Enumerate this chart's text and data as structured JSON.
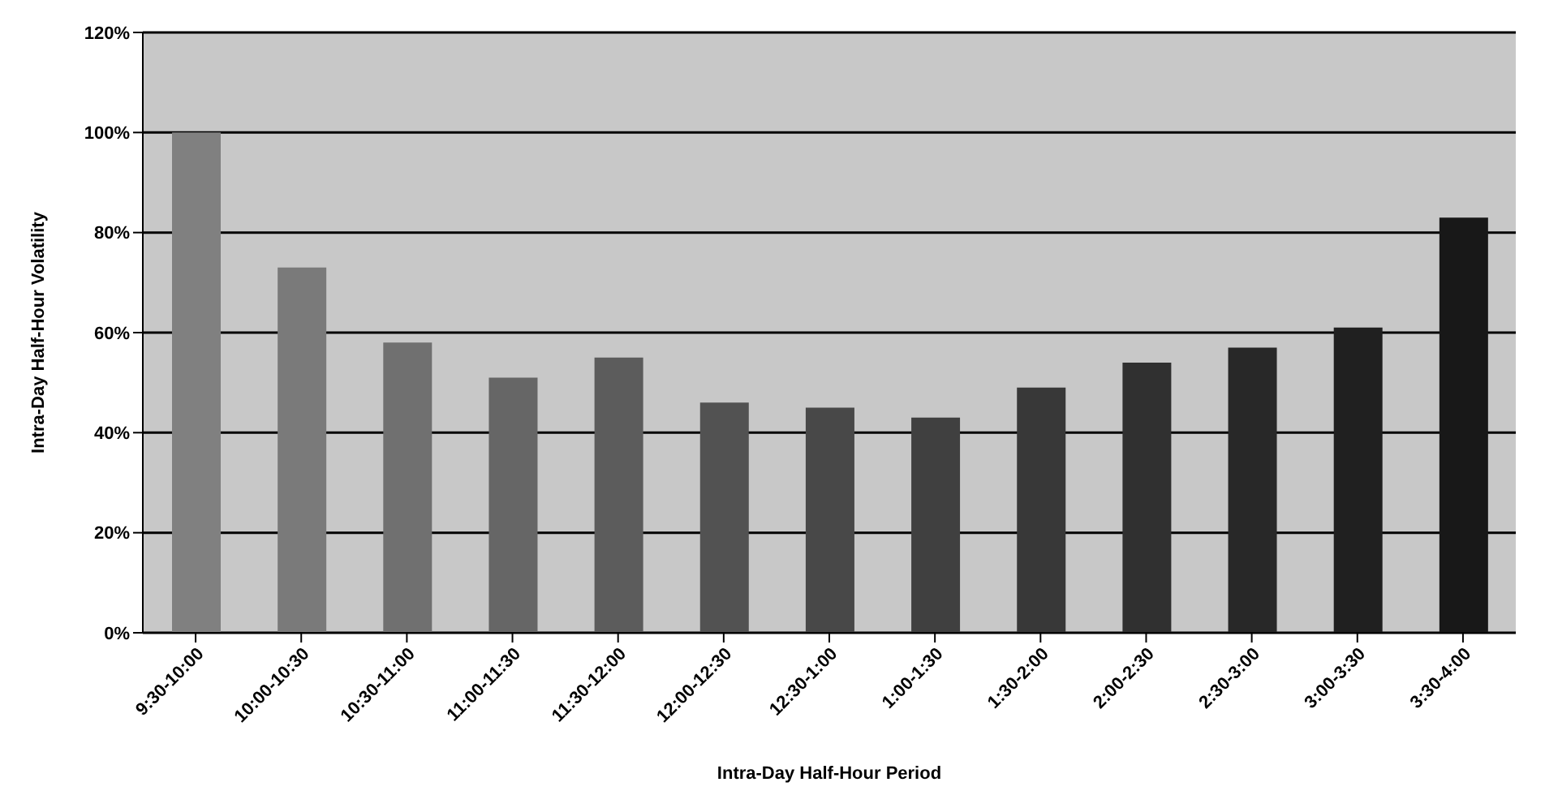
{
  "chart_data": {
    "type": "bar",
    "xlabel": "Intra-Day Half-Hour Period",
    "ylabel": "Intra-Day Half-Hour Volatility",
    "categories": [
      "9:30-10:00",
      "10:00-10:30",
      "10:30-11:00",
      "11:00-11:30",
      "11:30-12:00",
      "12:00-12:30",
      "12:30-1:00",
      "1:00-1:30",
      "1:30-2:00",
      "2:00-2:30",
      "2:30-3:00",
      "3:00-3:30",
      "3:30-4:00"
    ],
    "values": [
      100,
      73,
      58,
      51,
      55,
      46,
      45,
      43,
      49,
      54,
      57,
      61,
      83
    ],
    "colors": [
      "#808080",
      "#7a7a7a",
      "#707070",
      "#666666",
      "#5c5c5c",
      "#525252",
      "#484848",
      "#404040",
      "#383838",
      "#303030",
      "#282828",
      "#202020",
      "#181818"
    ],
    "ylim": [
      0,
      120
    ],
    "yticks": [
      {
        "value": 0,
        "label": "0%"
      },
      {
        "value": 20,
        "label": "20%"
      },
      {
        "value": 40,
        "label": "40%"
      },
      {
        "value": 60,
        "label": "60%"
      },
      {
        "value": 80,
        "label": "80%"
      },
      {
        "value": 100,
        "label": "100%"
      },
      {
        "value": 120,
        "label": "120%"
      }
    ],
    "grid": "y"
  }
}
